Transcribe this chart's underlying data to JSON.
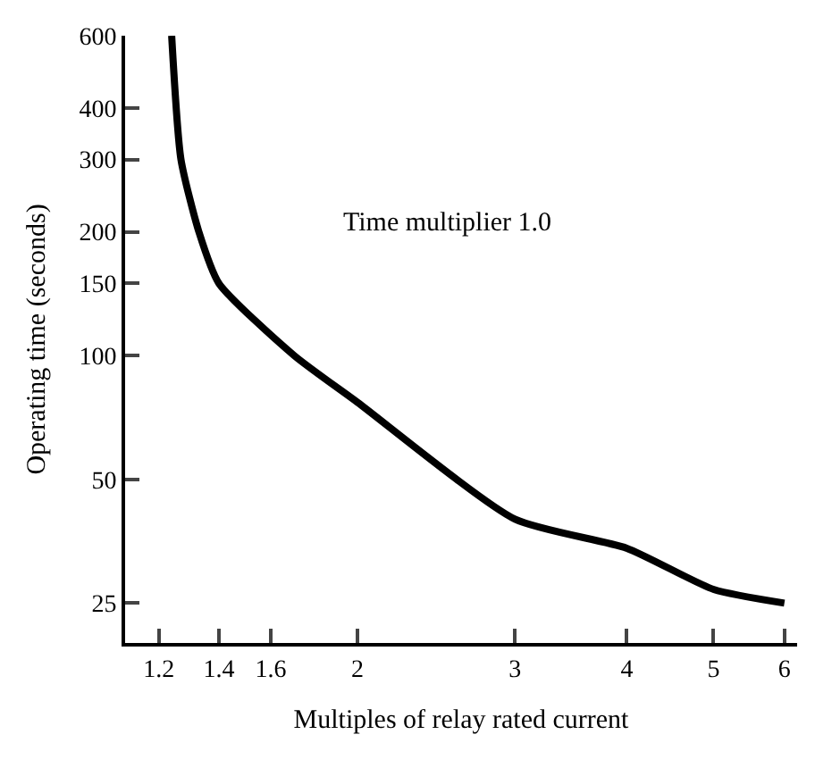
{
  "chart_data": {
    "type": "line",
    "xlabel": "Multiples of relay rated current",
    "ylabel": "Operating time (seconds)",
    "annotations": [
      "Time multiplier 1.0"
    ],
    "x": [
      1.24,
      1.27,
      1.33,
      1.4,
      1.7,
      2,
      3,
      4,
      5,
      6
    ],
    "series": [
      {
        "color": "#000000",
        "values": [
          600,
          300,
          200,
          150,
          100,
          77,
          40,
          34,
          27,
          25
        ]
      }
    ],
    "log": "xy",
    "xlim": [
      1.1,
      6.2
    ],
    "ylim": [
      20,
      600
    ],
    "xticks": [
      {
        "value": 1.2,
        "label": "1.2"
      },
      {
        "value": 1.4,
        "label": "1.4"
      },
      {
        "value": 1.6,
        "label": "1.6"
      },
      2,
      3,
      4,
      5,
      6
    ],
    "yticks": [
      25,
      50,
      100,
      150,
      200,
      300,
      400,
      600
    ],
    "marker": "none",
    "line_style": "solid"
  }
}
